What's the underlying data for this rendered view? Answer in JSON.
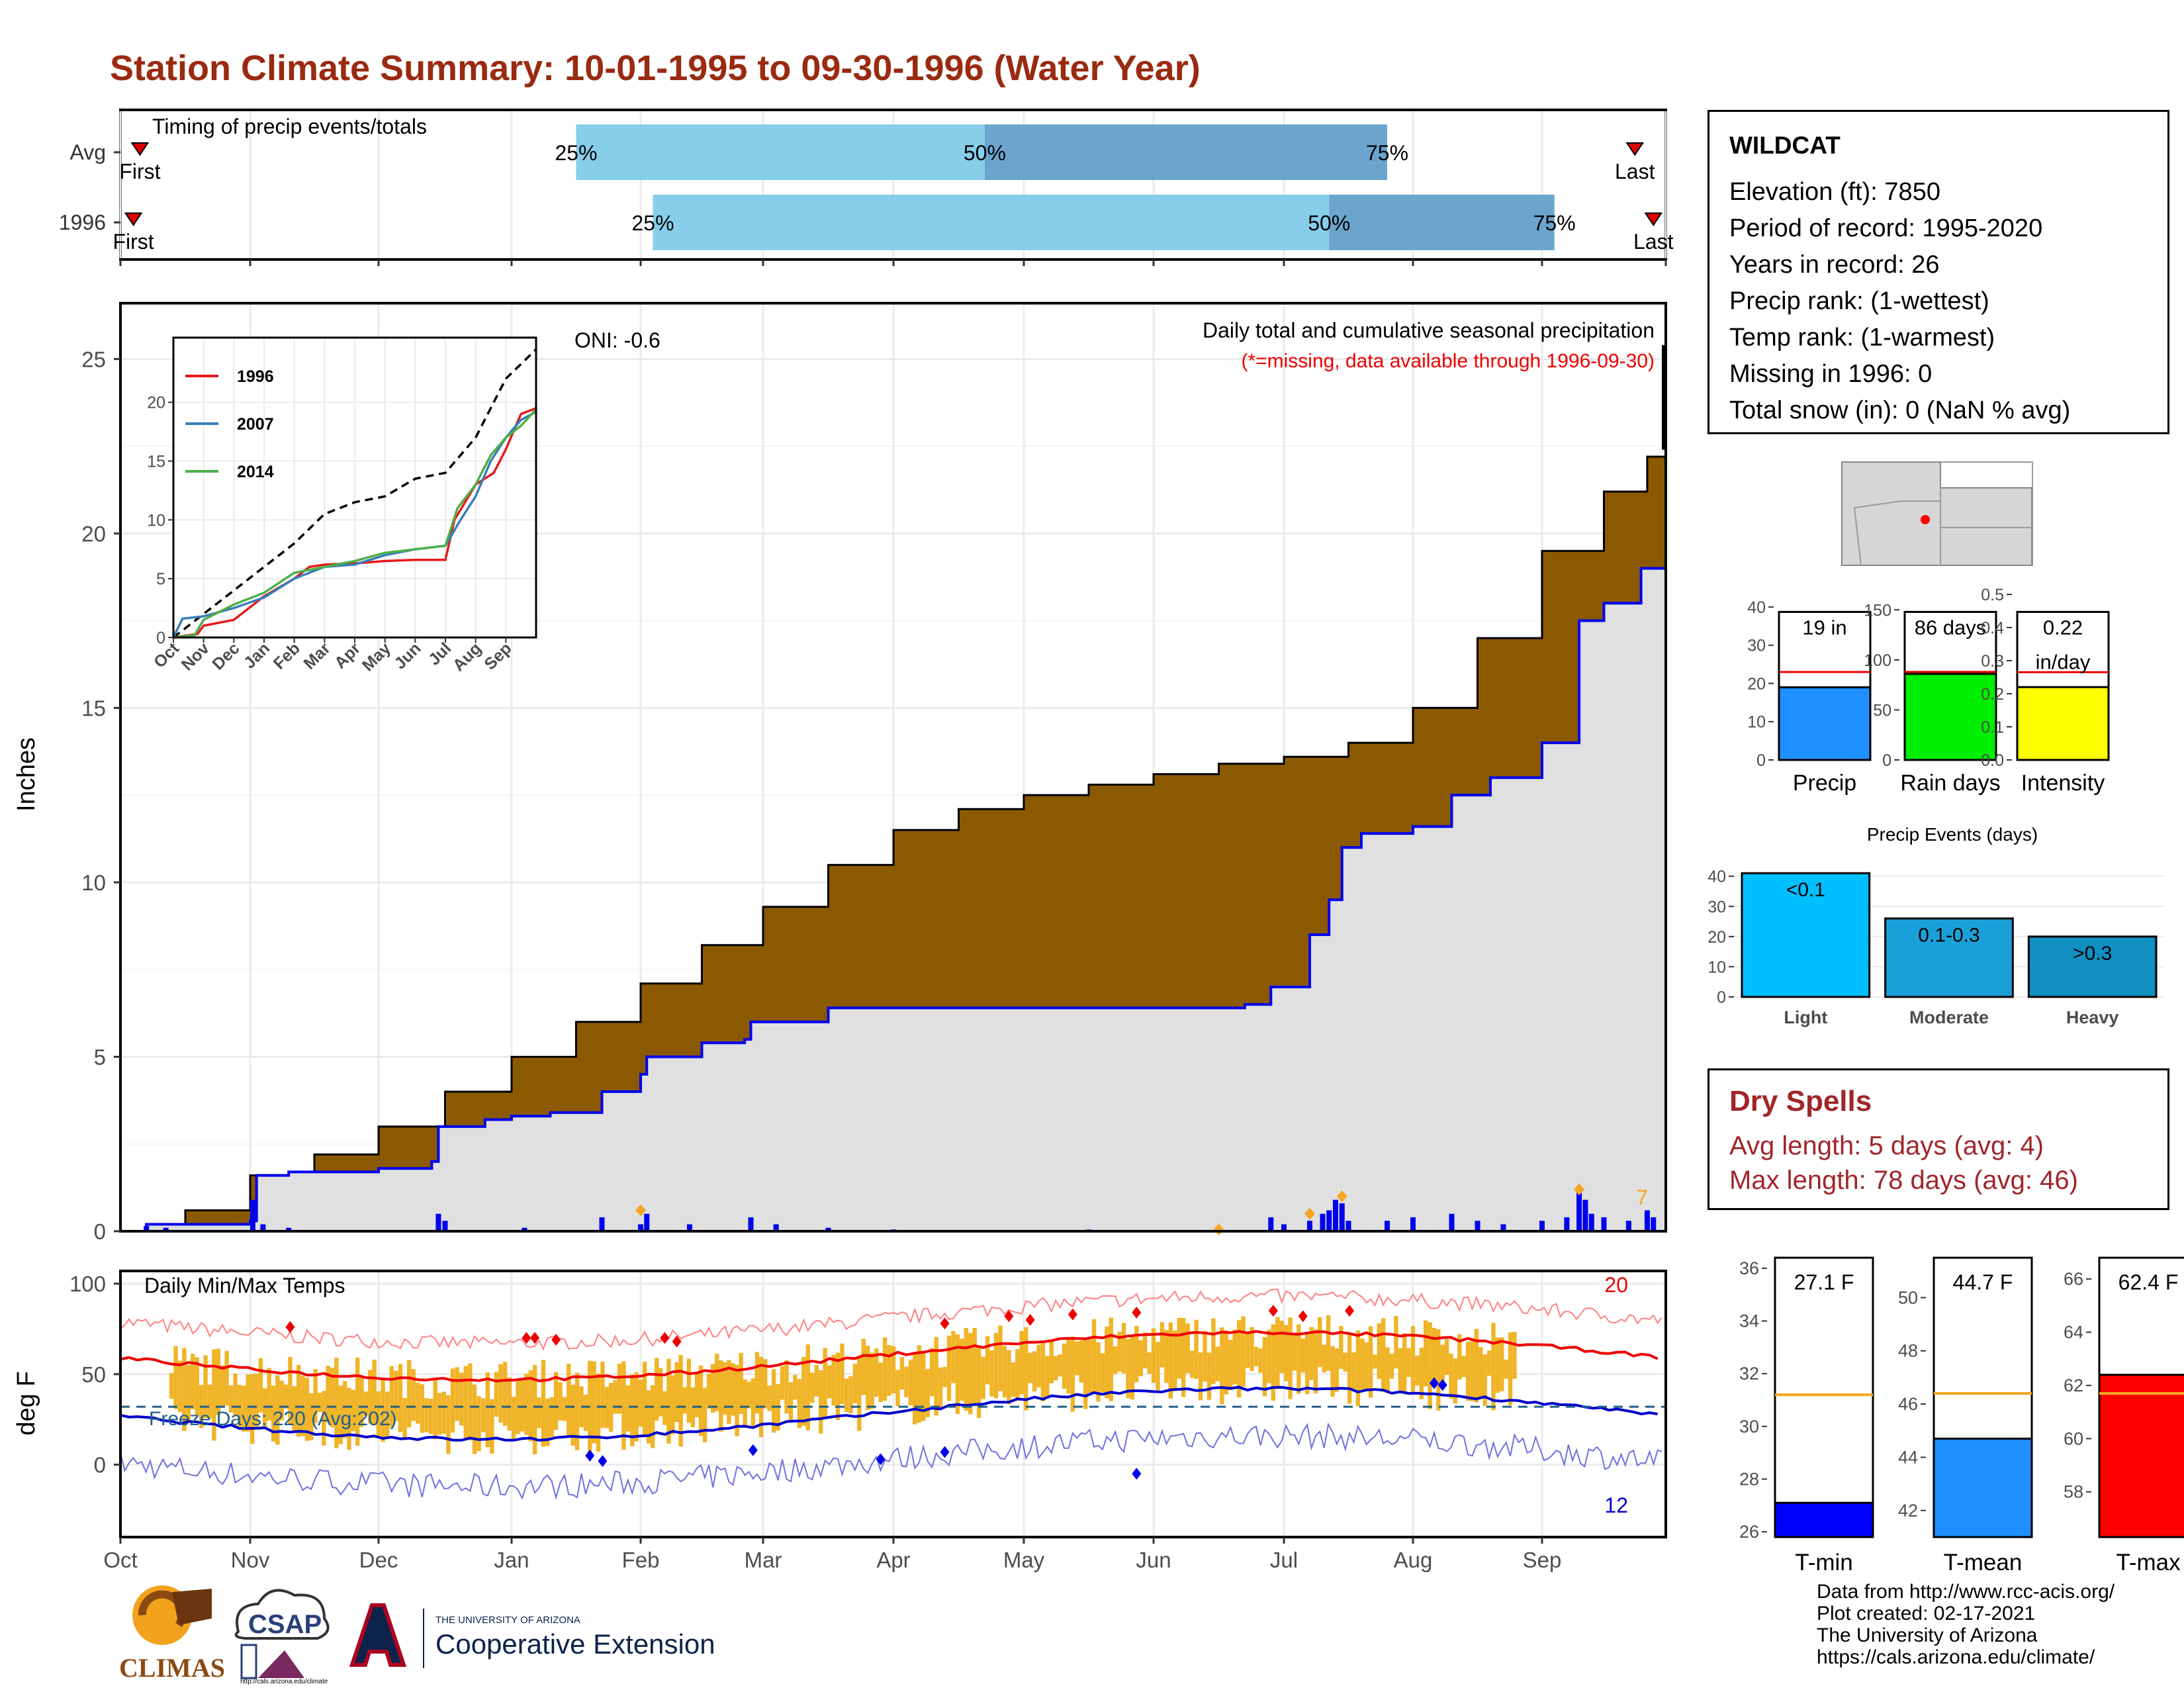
{
  "title": "Station Climate Summary: 10-01-1995 to 09-30-1996 (Water Year)",
  "timing": {
    "label": "Timing of precip events/totals",
    "rows": [
      {
        "name": "Avg",
        "first_label": "First",
        "last_label": "Last",
        "first": 0.15,
        "q25": 3.5,
        "q50": 6.7,
        "q75": 9.8,
        "last": 11.75
      },
      {
        "name": "1996",
        "first_label": "First",
        "last_label": "Last",
        "first": 0.1,
        "q25": 4.1,
        "q50": 9.35,
        "q75": 11.1,
        "last": 11.9
      }
    ],
    "pct_labels": [
      "25%",
      "50%",
      "75%"
    ],
    "colors": {
      "light": "#87ceeb",
      "dark": "#6ba5cd",
      "marker": "#dd0000"
    }
  },
  "precip_chart": {
    "title": "Daily total and cumulative seasonal precipitation",
    "subtitle": "(*=missing, data available through 1996-09-30)",
    "oni": "ONI: -0.6",
    "ylabel": "Inches",
    "y_ticks": [
      "0",
      "5",
      "10",
      "15",
      "20",
      "25"
    ],
    "corner_count": "7",
    "colors": {
      "avg_fill": "#8b5a00",
      "year_fill": "#e0e0e0",
      "line": "#0000ee",
      "bars": "#0000ee",
      "orange": "#f5a623"
    }
  },
  "inset": {
    "y_ticks": [
      "0",
      "5",
      "10",
      "15",
      "20"
    ],
    "x_ticks": [
      "Oct",
      "Nov",
      "Dec",
      "Jan",
      "Feb",
      "Mar",
      "Apr",
      "May",
      "Jun",
      "Jul",
      "Aug",
      "Sep"
    ],
    "legend": [
      {
        "name": "1996",
        "color": "#e41a1c"
      },
      {
        "name": "2007",
        "color": "#377eb8"
      },
      {
        "name": "2014",
        "color": "#4daf4a"
      }
    ]
  },
  "temp_chart": {
    "title": "Daily Min/Max Temps",
    "ylabel": "deg F",
    "y_ticks": [
      "0",
      "50",
      "100"
    ],
    "freeze_label": "Freeze Days: 220 (Avg:202)",
    "count_hot": "20",
    "count_cold": "12",
    "colors": {
      "bars": "#f0b428",
      "max": "#ee0000",
      "min": "#0000cc",
      "freeze": "#1f5f8b"
    }
  },
  "x_months": [
    "Oct",
    "Nov",
    "Dec",
    "Jan",
    "Feb",
    "Mar",
    "Apr",
    "May",
    "Jun",
    "Jul",
    "Aug",
    "Sep"
  ],
  "station": {
    "name": "WILDCAT",
    "lines": [
      "Elevation (ft): 7850",
      "Period of record: 1995-2020",
      "Years in record: 26",
      "Precip rank:  (1-wettest)",
      "Temp rank:  (1-warmest)",
      "Missing in 1996: 0",
      "Total snow (in): 0 (NaN % avg)"
    ]
  },
  "mini_bars": [
    {
      "label": "Precip",
      "value_text": "19 in",
      "value": 19,
      "avg": 23,
      "max": 45,
      "ticks": [
        "0",
        "10",
        "20",
        "30",
        "40"
      ],
      "color": "#1e90ff"
    },
    {
      "label": "Rain days",
      "value_text": "86 days",
      "value": 86,
      "avg": 88,
      "max": 172,
      "ticks": [
        "0",
        "50",
        "100",
        "150"
      ],
      "color": "#00ee00"
    },
    {
      "label": "Intensity",
      "value_text": "0.22\nin/day",
      "value": 0.22,
      "avg": 0.265,
      "max": 0.52,
      "ticks": [
        "0.0",
        "0.1",
        "0.2",
        "0.3",
        "0.4",
        "0.5"
      ],
      "color": "#ffff00"
    }
  ],
  "precip_events": {
    "title": "Precip Events (days)",
    "ticks": [
      "0",
      "10",
      "20",
      "30",
      "40"
    ],
    "bars": [
      {
        "label": "Light",
        "text": "<0.1",
        "value": 41,
        "color": "#00bfff"
      },
      {
        "label": "Moderate",
        "text": "0.1-0.3",
        "value": 26,
        "color": "#1aa0d8"
      },
      {
        "label": "Heavy",
        "text": ">0.3",
        "value": 20,
        "color": "#0f8fc2"
      }
    ]
  },
  "dry_spells": {
    "title": "Dry Spells",
    "avg_length": "Avg length: 5 days (avg: 4)",
    "max_length": "Max length: 78 days (avg: 46)"
  },
  "temp_bars": [
    {
      "label": "T-min",
      "value_text": "27.1 F",
      "value": 27.1,
      "avg": 31.2,
      "ymin": 25.8,
      "ymax": 36.4,
      "ticks": [
        26,
        28,
        30,
        32,
        34,
        36
      ],
      "color": "#0000ff"
    },
    {
      "label": "T-mean",
      "value_text": "44.7 F",
      "value": 44.7,
      "avg": 46.4,
      "ymin": 41.0,
      "ymax": 51.5,
      "ticks": [
        42,
        44,
        46,
        48,
        50
      ],
      "color": "#1e90ff"
    },
    {
      "label": "T-max",
      "value_text": "62.4 F",
      "value": 62.4,
      "avg": 61.7,
      "ymin": 56.3,
      "ymax": 66.8,
      "ticks": [
        58,
        60,
        62,
        64,
        66
      ],
      "color": "#ff0000"
    }
  ],
  "credits": [
    "Data from http://www.rcc-acis.org/",
    "Plot created: 02-17-2021",
    "The University of Arizona",
    "https://cals.arizona.edu/climate/"
  ],
  "logos": {
    "climas": "CLIMAS",
    "csap": "CSAP",
    "csap_url": "http://cals.arizona.edu/climate",
    "ua_small": "THE UNIVERSITY OF ARIZONA",
    "ua_big": "Cooperative Extension"
  }
}
